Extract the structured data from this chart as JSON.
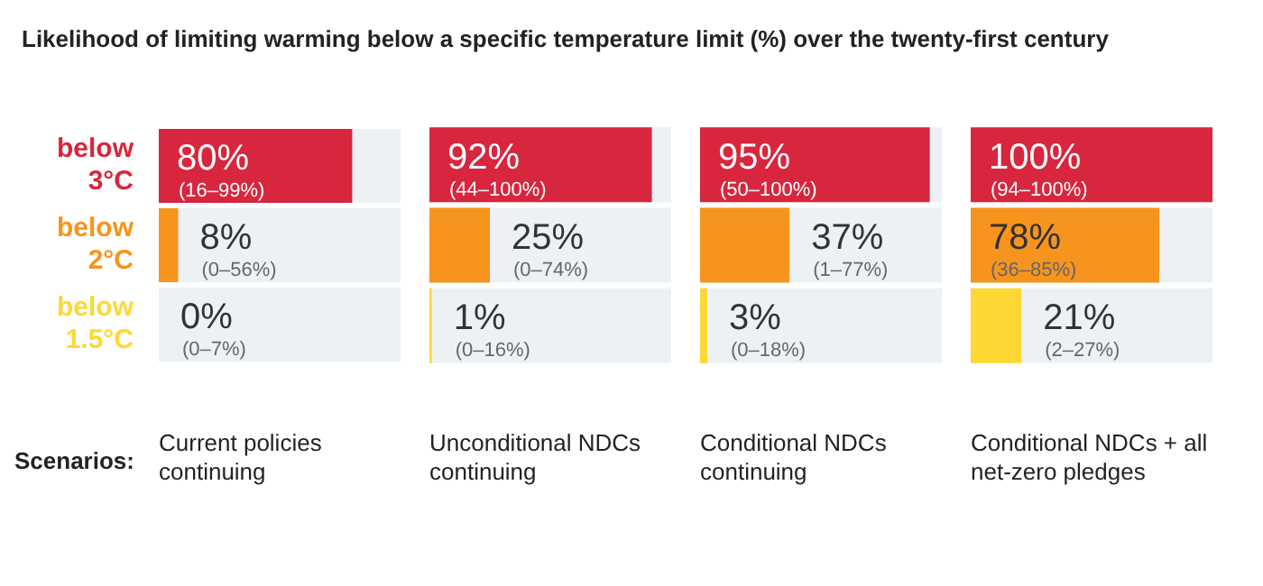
{
  "chart_data": [
    {
      "type": "bar",
      "orientation": "horizontal",
      "title": "Likelihood of limiting warming below a specific temperature limit (%) over the twenty-first century",
      "categories": [
        "below 3°C",
        "below 2°C",
        "below 1.5°C"
      ],
      "values": [
        80,
        8,
        0
      ],
      "colors": [
        "#d7263d",
        "#f7941d",
        "#fdd835"
      ],
      "xlim": [
        0,
        100
      ],
      "bands": [
        {
          "axis": "x",
          "from": 0,
          "to": 100,
          "color": "#eef1f4"
        }
      ],
      "value_labels": [
        "80%\n(16–99%)",
        "8%\n(0–56%)",
        "0%\n(0–7%)"
      ],
      "xlabel": "Current policies continuing",
      "annotations": [
        "Scenarios:"
      ],
      "tick_labels": "y"
    },
    {
      "type": "bar",
      "orientation": "horizontal",
      "categories": [
        null,
        null,
        null
      ],
      "values": [
        92,
        25,
        1
      ],
      "colors": [
        "#d7263d",
        "#f7941d",
        "#fdd835"
      ],
      "xlim": [
        0,
        100
      ],
      "bands": [
        {
          "axis": "x",
          "from": 0,
          "to": 100,
          "color": "#eef1f4"
        }
      ],
      "value_labels": [
        "92%\n(44–100%)",
        "25%\n(0–74%)",
        "1%\n(0–16%)"
      ],
      "xlabel": "Unconditional NDCs continuing",
      "tick_labels": false
    },
    {
      "type": "bar",
      "orientation": "horizontal",
      "categories": [
        null,
        null,
        null
      ],
      "values": [
        95,
        37,
        3
      ],
      "colors": [
        "#d7263d",
        "#f7941d",
        "#fdd835"
      ],
      "xlim": [
        0,
        100
      ],
      "bands": [
        {
          "axis": "x",
          "from": 0,
          "to": 100,
          "color": "#eef1f4"
        }
      ],
      "value_labels": [
        "95%\n(50–100%)",
        "37%\n(1–77%)",
        "3%\n(0–18%)"
      ],
      "xlabel": "Conditional NDCs continuing",
      "tick_labels": false
    },
    {
      "type": "bar",
      "orientation": "horizontal",
      "categories": [
        null,
        null,
        null
      ],
      "values": [
        100,
        78,
        21
      ],
      "colors": [
        "#d7263d",
        "#f7941d",
        "#fdd835"
      ],
      "xlim": [
        0,
        100
      ],
      "bands": [
        {
          "axis": "x",
          "from": 0,
          "to": 100,
          "color": "#eef1f4"
        }
      ],
      "value_labels": [
        "100%\n(94–100%)",
        "78%\n(36–85%)",
        "21%\n(2–27%)"
      ],
      "xlabel": "Conditional NDCs + all net-zero pledges",
      "tick_labels": false
    }
  ]
}
